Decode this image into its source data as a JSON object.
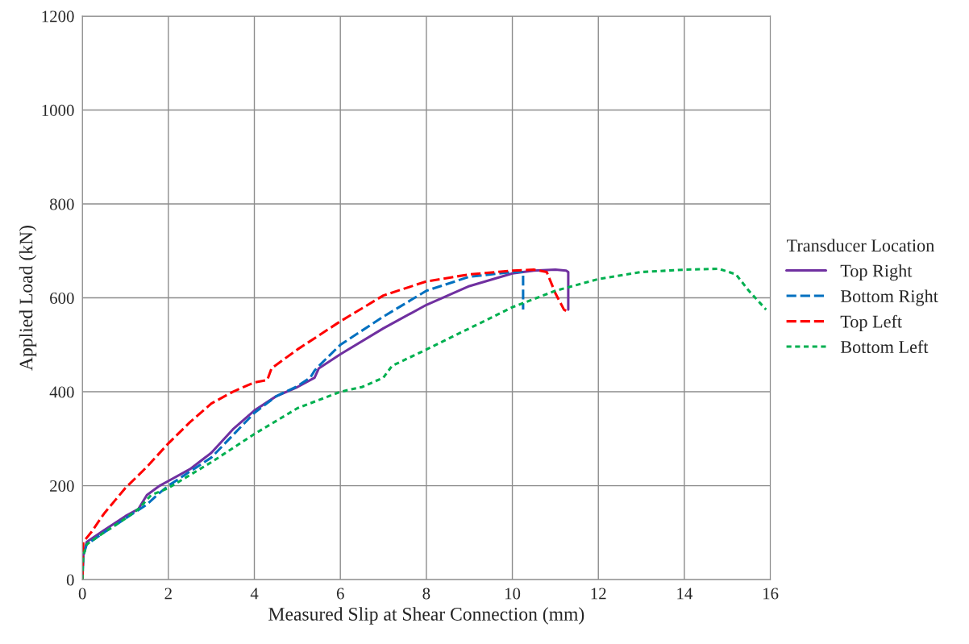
{
  "chart_data": {
    "type": "line",
    "xlabel": "Measured Slip at Shear Connection (mm)",
    "ylabel": "Applied Load (kN)",
    "legend_title": "Transducer Location",
    "legend": "right",
    "grid": true,
    "xlim": [
      0,
      16
    ],
    "xticks": [
      0,
      2,
      4,
      6,
      8,
      10,
      12,
      14,
      16
    ],
    "ylim": [
      0,
      1200
    ],
    "yticks": [
      0,
      200,
      400,
      600,
      800,
      1000,
      1200
    ],
    "series": [
      {
        "name": "Top Right",
        "color": "#7030a0",
        "line_style": "solid",
        "x": [
          0,
          0.02,
          0.1,
          0.5,
          1,
          1.3,
          1.5,
          1.8,
          2,
          2.5,
          3,
          3.5,
          4,
          4.5,
          5,
          5.4,
          5.5,
          6,
          7,
          8,
          9,
          10,
          10.5,
          11,
          11.25,
          11.3,
          11.3
        ],
        "values": [
          0,
          50,
          80,
          105,
          135,
          150,
          180,
          200,
          210,
          235,
          270,
          320,
          360,
          390,
          410,
          430,
          450,
          480,
          535,
          585,
          625,
          652,
          658,
          660,
          658,
          655,
          575
        ]
      },
      {
        "name": "Bottom Right",
        "color": "#0070c0",
        "line_style": "dashed",
        "x": [
          0,
          0.02,
          0.1,
          0.5,
          1,
          1.5,
          1.8,
          2,
          3,
          4,
          4.5,
          5,
          5.3,
          5.4,
          5.5,
          6,
          7,
          8,
          9,
          10,
          10.25,
          10.25
        ],
        "values": [
          0,
          50,
          75,
          100,
          130,
          160,
          185,
          200,
          260,
          355,
          390,
          412,
          430,
          445,
          455,
          500,
          560,
          615,
          645,
          655,
          655,
          575
        ]
      },
      {
        "name": "Top Left",
        "color": "#ff0000",
        "line_style": "dashed",
        "x": [
          0,
          0.02,
          0.2,
          0.5,
          1,
          1.5,
          2,
          2.5,
          3,
          3.5,
          4,
          4.3,
          4.4,
          5,
          6,
          7,
          8,
          9,
          10,
          10.5,
          10.8,
          11,
          11.2,
          11.3
        ],
        "values": [
          0,
          80,
          100,
          140,
          195,
          240,
          290,
          335,
          375,
          400,
          420,
          425,
          450,
          490,
          550,
          605,
          635,
          650,
          658,
          660,
          655,
          610,
          575,
          570
        ]
      },
      {
        "name": "Bottom Left",
        "color": "#00b050",
        "line_style": "dotted",
        "x": [
          0,
          0.02,
          0.1,
          0.5,
          1,
          1.3,
          1.6,
          2,
          3,
          4,
          5,
          6,
          6.5,
          7,
          7.2,
          8,
          9,
          10,
          11,
          12,
          13,
          14,
          14.8,
          15.2,
          15.5,
          15.9
        ],
        "values": [
          0,
          50,
          75,
          100,
          130,
          150,
          180,
          195,
          250,
          310,
          365,
          400,
          410,
          430,
          455,
          490,
          535,
          580,
          615,
          640,
          655,
          660,
          662,
          650,
          615,
          575
        ]
      }
    ]
  }
}
